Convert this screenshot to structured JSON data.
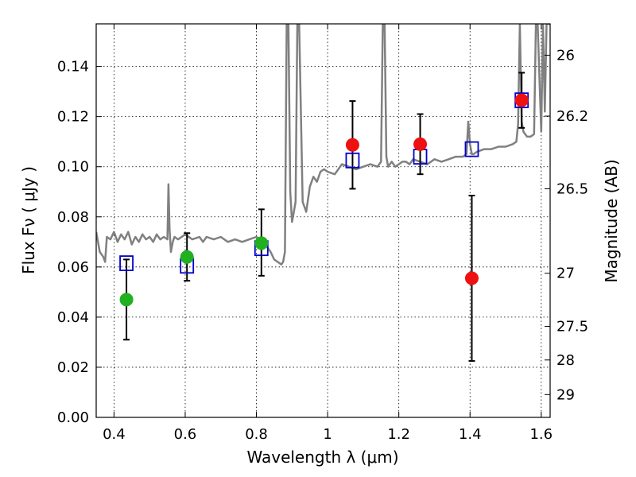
{
  "chart_data": {
    "type": "scatter",
    "title": "",
    "xlabel": "Wavelength  λ (μm)",
    "ylabel": "Flux  Fν  ( μJy )",
    "y2label": "Magnitude (AB)",
    "xlim": [
      0.35,
      1.625
    ],
    "ylim": [
      0.0,
      0.157
    ],
    "grid": true,
    "x_ticks": [
      0.4,
      0.6,
      0.8,
      1.0,
      1.2,
      1.4,
      1.6
    ],
    "x_tick_labels": [
      "0.4",
      "0.6",
      "0.8",
      "1",
      "1.2",
      "1.4",
      "1.6"
    ],
    "y_ticks": [
      0.0,
      0.02,
      0.04,
      0.06,
      0.08,
      0.1,
      0.12,
      0.14
    ],
    "y_tick_labels": [
      "0.00",
      "0.02",
      "0.04",
      "0.06",
      "0.08",
      "0.10",
      "0.12",
      "0.14"
    ],
    "y2_ticks": [
      {
        "label": "26",
        "flux": 0.1445
      },
      {
        "label": "26.2",
        "flux": 0.1202
      },
      {
        "label": "26.5",
        "flux": 0.0912
      },
      {
        "label": "27",
        "flux": 0.0575
      },
      {
        "label": "27.5",
        "flux": 0.0363
      },
      {
        "label": "28",
        "flux": 0.0229
      },
      {
        "label": "29",
        "flux": 0.0091
      }
    ],
    "series": [
      {
        "kind": "model-spectrum",
        "color": "#808080",
        "x": [
          0.35,
          0.36,
          0.37,
          0.375,
          0.38,
          0.39,
          0.4,
          0.41,
          0.42,
          0.43,
          0.44,
          0.45,
          0.46,
          0.47,
          0.48,
          0.49,
          0.5,
          0.51,
          0.52,
          0.53,
          0.54,
          0.55,
          0.553,
          0.556,
          0.56,
          0.565,
          0.57,
          0.58,
          0.6,
          0.62,
          0.64,
          0.65,
          0.66,
          0.68,
          0.7,
          0.72,
          0.74,
          0.76,
          0.78,
          0.8,
          0.82,
          0.84,
          0.85,
          0.86,
          0.87,
          0.875,
          0.88,
          0.885,
          0.89,
          0.895,
          0.9,
          0.905,
          0.91,
          0.915,
          0.92,
          0.93,
          0.94,
          0.95,
          0.96,
          0.97,
          0.98,
          0.99,
          1.0,
          1.02,
          1.04,
          1.06,
          1.08,
          1.1,
          1.12,
          1.14,
          1.15,
          1.155,
          1.16,
          1.165,
          1.17,
          1.18,
          1.19,
          1.2,
          1.21,
          1.22,
          1.23,
          1.24,
          1.26,
          1.28,
          1.3,
          1.32,
          1.34,
          1.36,
          1.38,
          1.39,
          1.395,
          1.4,
          1.405,
          1.41,
          1.42,
          1.44,
          1.46,
          1.48,
          1.5,
          1.52,
          1.53,
          1.535,
          1.54,
          1.545,
          1.55,
          1.56,
          1.57,
          1.58,
          1.585,
          1.59,
          1.6,
          1.605,
          1.61,
          1.615,
          1.62,
          1.625
        ],
        "y": [
          0.074,
          0.066,
          0.064,
          0.062,
          0.072,
          0.071,
          0.074,
          0.07,
          0.073,
          0.071,
          0.074,
          0.069,
          0.072,
          0.07,
          0.073,
          0.071,
          0.072,
          0.07,
          0.073,
          0.071,
          0.072,
          0.071,
          0.093,
          0.075,
          0.066,
          0.07,
          0.072,
          0.071,
          0.073,
          0.071,
          0.072,
          0.07,
          0.072,
          0.071,
          0.072,
          0.07,
          0.071,
          0.07,
          0.071,
          0.072,
          0.07,
          0.066,
          0.063,
          0.062,
          0.061,
          0.062,
          0.066,
          0.157,
          0.157,
          0.09,
          0.078,
          0.082,
          0.086,
          0.157,
          0.157,
          0.086,
          0.082,
          0.092,
          0.096,
          0.094,
          0.098,
          0.099,
          0.098,
          0.097,
          0.101,
          0.1,
          0.099,
          0.1,
          0.101,
          0.1,
          0.102,
          0.157,
          0.157,
          0.104,
          0.1,
          0.102,
          0.1,
          0.101,
          0.102,
          0.102,
          0.101,
          0.103,
          0.102,
          0.101,
          0.103,
          0.102,
          0.103,
          0.104,
          0.104,
          0.105,
          0.118,
          0.109,
          0.105,
          0.105,
          0.106,
          0.107,
          0.107,
          0.108,
          0.108,
          0.109,
          0.11,
          0.117,
          0.157,
          0.118,
          0.114,
          0.112,
          0.112,
          0.113,
          0.157,
          0.157,
          0.114,
          0.157,
          0.122,
          0.157,
          0.157,
          0.157
        ]
      },
      {
        "kind": "model-photometry",
        "marker": "square",
        "color": "#0000cc",
        "x": [
          0.435,
          0.605,
          0.814,
          1.07,
          1.26,
          1.405,
          1.545
        ],
        "y": [
          0.0615,
          0.0605,
          0.0675,
          0.1025,
          0.104,
          0.107,
          0.1265
        ]
      },
      {
        "kind": "observed-optical",
        "marker": "circle",
        "color": "#20b020",
        "x": [
          0.435,
          0.605,
          0.814
        ],
        "y": [
          0.047,
          0.064,
          0.0695
        ],
        "err_low": [
          0.016,
          0.0095,
          0.013
        ],
        "err_high": [
          0.016,
          0.0095,
          0.0135
        ]
      },
      {
        "kind": "observed-infrared",
        "marker": "circle",
        "color": "#ee1111",
        "x": [
          1.07,
          1.26,
          1.405,
          1.545
        ],
        "y": [
          0.1087,
          0.109,
          0.0555,
          0.1265
        ],
        "err_low": [
          0.0175,
          0.012,
          0.033,
          0.011
        ],
        "err_high": [
          0.0175,
          0.012,
          0.033,
          0.011
        ]
      }
    ]
  }
}
